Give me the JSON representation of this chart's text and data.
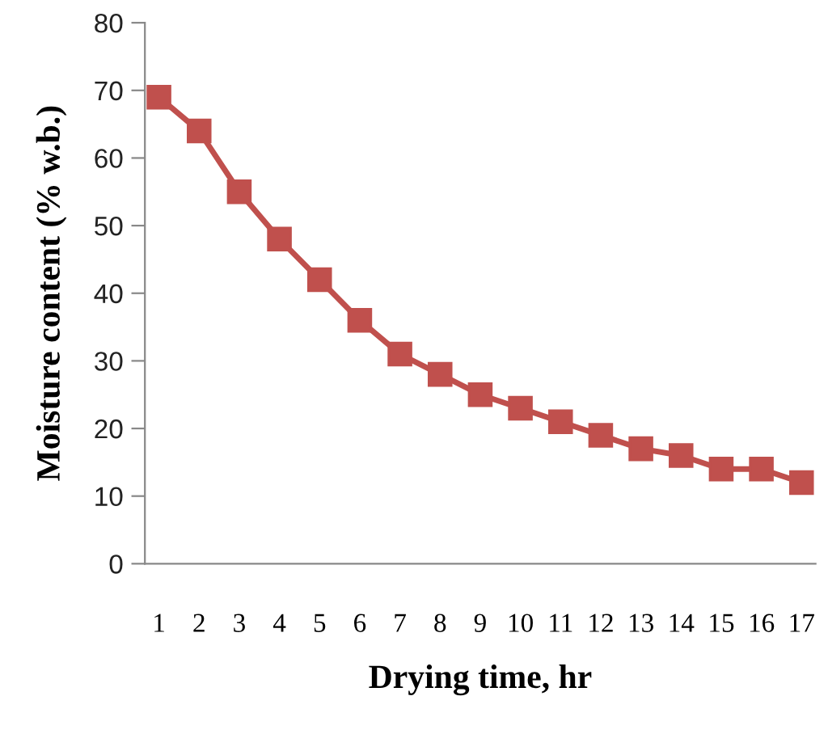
{
  "chart_data": {
    "type": "line",
    "xlabel": "Drying time, hr",
    "ylabel": "Moisture content (% w.b.)",
    "categories": [
      "1",
      "2",
      "3",
      "4",
      "5",
      "6",
      "7",
      "8",
      "9",
      "10",
      "11",
      "12",
      "13",
      "14",
      "15",
      "16",
      "17"
    ],
    "series": [
      {
        "color": "#c0504d",
        "values": [
          69,
          64,
          55,
          48,
          42,
          36,
          31,
          28,
          25,
          23,
          21,
          19,
          17,
          16,
          14,
          14,
          12
        ]
      }
    ],
    "ylim": [
      0,
      80
    ],
    "yticks": [
      0,
      10,
      20,
      30,
      40,
      50,
      60,
      70,
      80
    ],
    "grid": false,
    "legend": false,
    "marker": "square",
    "line_style": "solid"
  }
}
